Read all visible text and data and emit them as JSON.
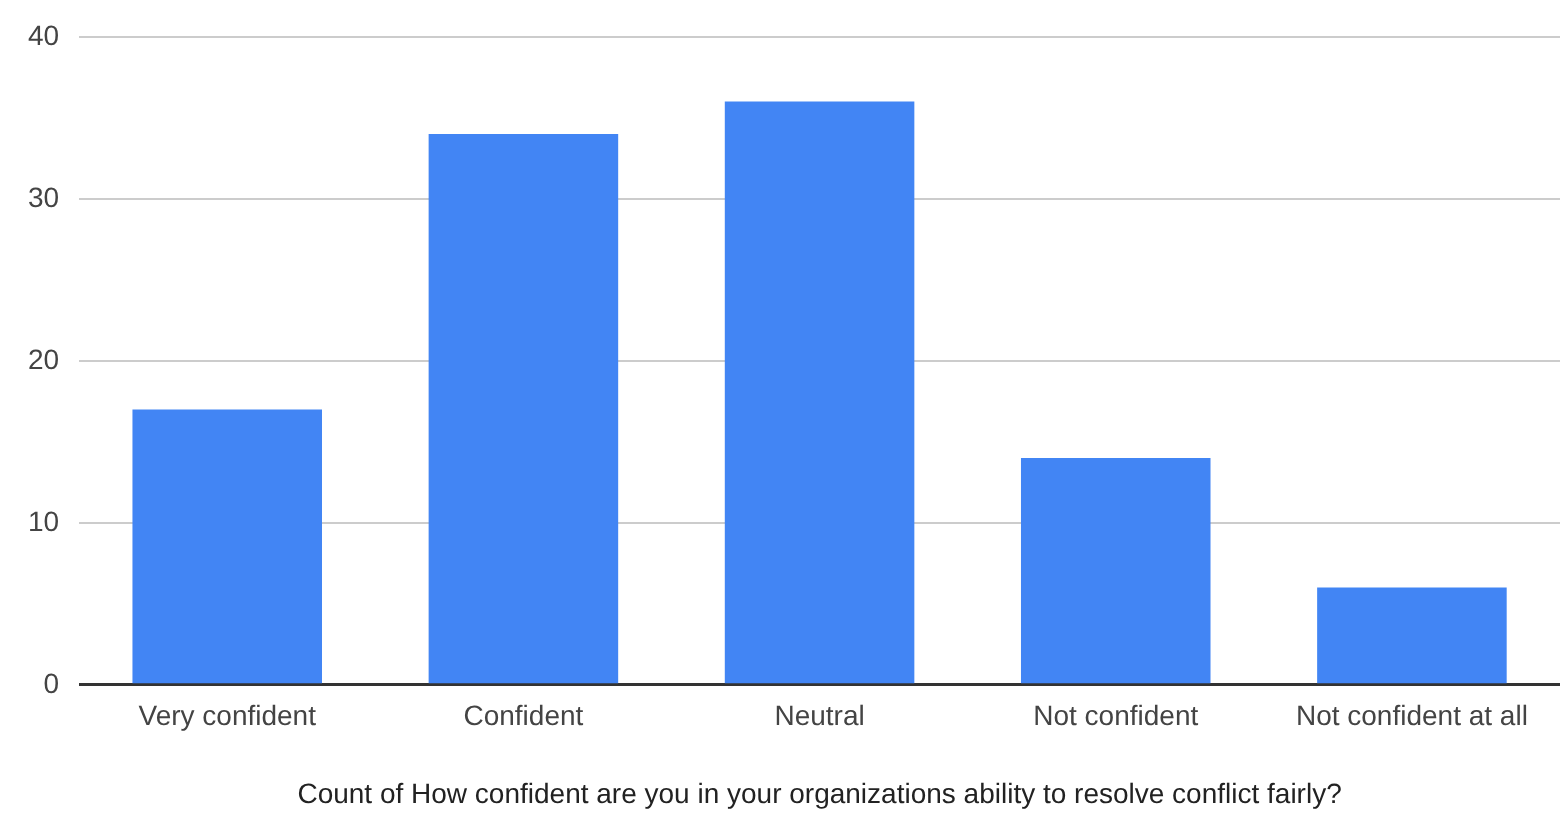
{
  "chart_data": {
    "type": "bar",
    "xlabel": "Count of How confident are you in your organizations ability to resolve conflict fairly?",
    "categories": [
      "Very confident",
      "Confident",
      "Neutral",
      "Not confident",
      "Not confident at all"
    ],
    "values": [
      17,
      34,
      36,
      14,
      6
    ],
    "color": "#4285f4",
    "ylim": [
      0,
      40
    ],
    "yticks": [
      0,
      10,
      20,
      30,
      40
    ],
    "grid": "y"
  }
}
